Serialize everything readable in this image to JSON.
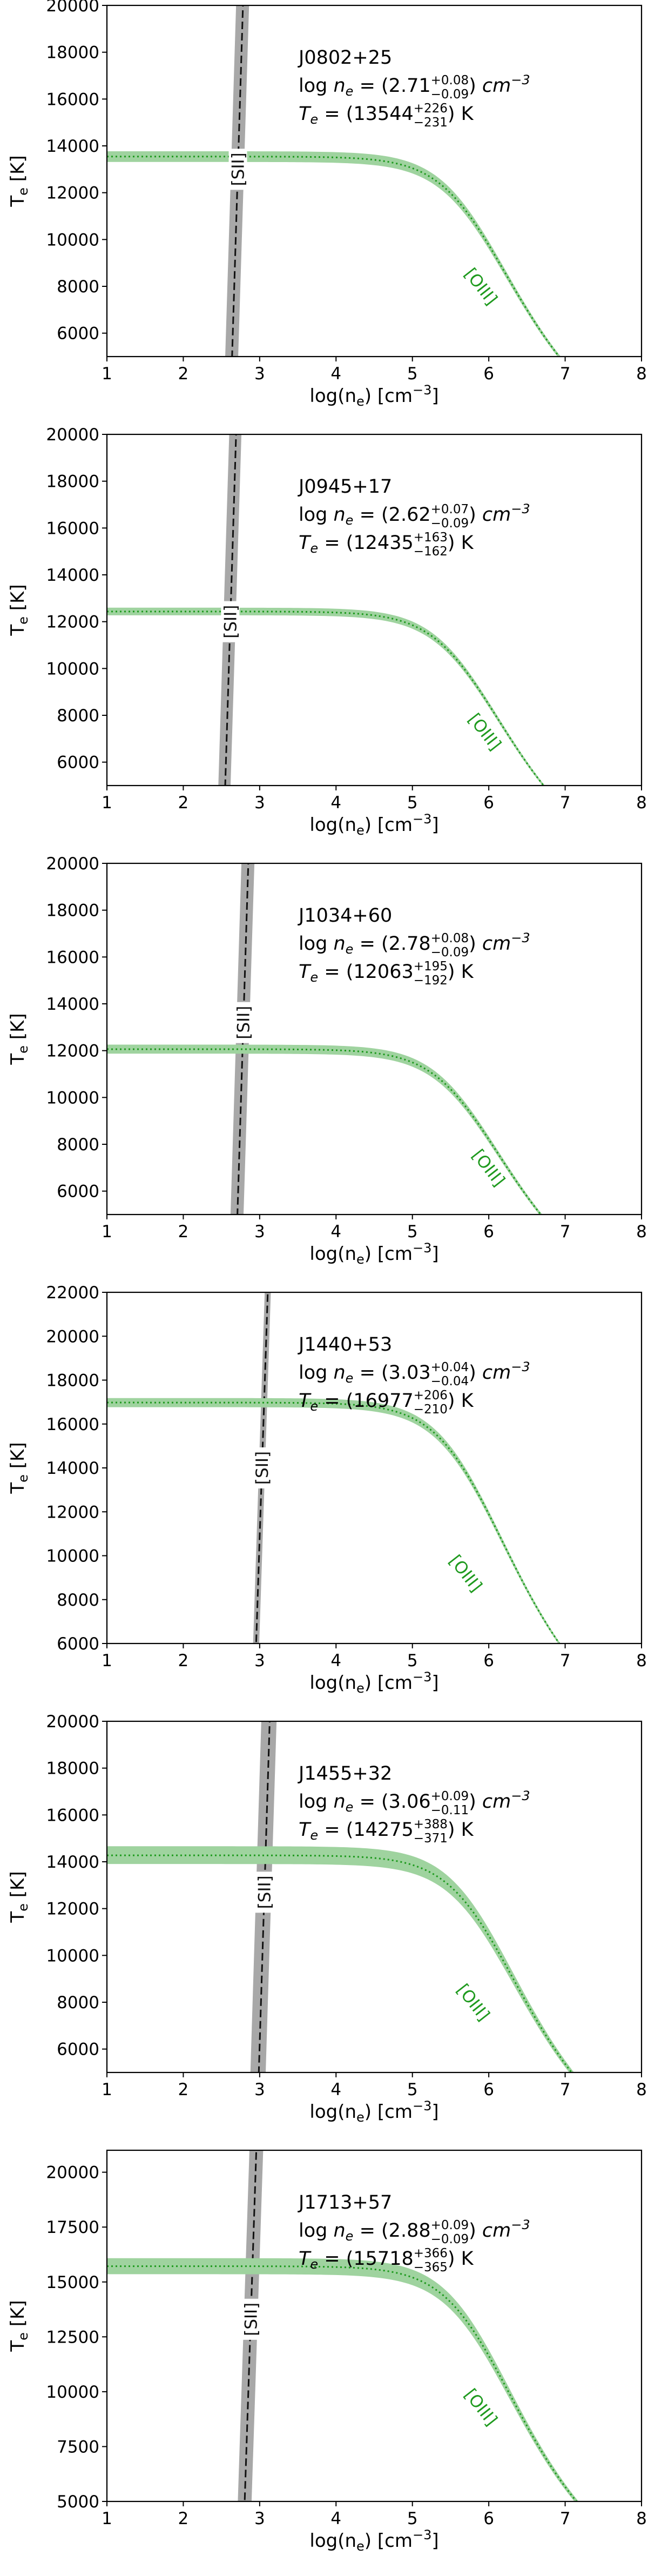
{
  "figure": {
    "shared_xlabel": "log(n_e) [cm^-3]",
    "shared_ylabel": "T_e [K]"
  },
  "colors": {
    "oiii": "#1e9a1e",
    "oiii_band": "#9fd39f",
    "sii": "#111111",
    "sii_band": "#a8a8a8",
    "axis": "#000000"
  },
  "chart_data": [
    {
      "type": "line",
      "object": "J0802+25",
      "ne_text": {
        "prefix": "log ",
        "var": "n",
        "sub": "e",
        "eq": " = (2.71",
        "sup": "+0.08",
        "inf": "−0.09",
        "suffix": ") ",
        "unit": "cm",
        "unit_exp": "−3"
      },
      "te_text": {
        "var": "T",
        "sub": "e",
        "eq": " = (13544",
        "sup": "+226",
        "inf": "−231",
        "suffix": ") K"
      },
      "xlim": [
        1,
        8
      ],
      "ylim": [
        5000,
        20000
      ],
      "xticks": [
        1,
        2,
        3,
        4,
        5,
        6,
        7,
        8
      ],
      "yticks": [
        6000,
        8000,
        10000,
        12000,
        14000,
        16000,
        18000,
        20000
      ],
      "xlabel": "log(n_e) [cm^-3]",
      "ylabel": "T_e [K]",
      "oiii": {
        "label": "[OIII]",
        "te_low_density": 13544,
        "te_err_plus": 226,
        "te_err_minus": 231,
        "knee_log_ne": 5.8
      },
      "sii": {
        "label": "[SII]",
        "log_ne": 2.71,
        "err_plus": 0.08,
        "err_minus": 0.09,
        "slope_dex_per_K": 9.5e-06,
        "visible_line_ylim": [
          5000,
          20000
        ]
      },
      "labels_pos": {
        "sii_y": 13000,
        "oiii_x": 5.9,
        "oiii_y": 8000
      }
    },
    {
      "type": "line",
      "object": "J0945+17",
      "ne_text": {
        "prefix": "log ",
        "var": "n",
        "sub": "e",
        "eq": " = (2.62",
        "sup": "+0.07",
        "inf": "−0.09",
        "suffix": ") ",
        "unit": "cm",
        "unit_exp": "−3"
      },
      "te_text": {
        "var": "T",
        "sub": "e",
        "eq": " = (12435",
        "sup": "+163",
        "inf": "−162",
        "suffix": ") K"
      },
      "xlim": [
        1,
        8
      ],
      "ylim": [
        5000,
        20000
      ],
      "xticks": [
        1,
        2,
        3,
        4,
        5,
        6,
        7,
        8
      ],
      "yticks": [
        6000,
        8000,
        10000,
        12000,
        14000,
        16000,
        18000,
        20000
      ],
      "xlabel": "log(n_e) [cm^-3]",
      "ylabel": "T_e [K]",
      "oiii": {
        "label": "[OIII]",
        "te_low_density": 12435,
        "te_err_plus": 163,
        "te_err_minus": 162,
        "knee_log_ne": 5.7
      },
      "sii": {
        "label": "[SII]",
        "log_ne": 2.62,
        "err_plus": 0.07,
        "err_minus": 0.09,
        "slope_dex_per_K": 9.5e-06,
        "visible_line_ylim": [
          5000,
          20000
        ]
      },
      "labels_pos": {
        "sii_y": 12000,
        "oiii_x": 5.95,
        "oiii_y": 7300
      }
    },
    {
      "type": "line",
      "object": "J1034+60",
      "ne_text": {
        "prefix": "log ",
        "var": "n",
        "sub": "e",
        "eq": " = (2.78",
        "sup": "+0.08",
        "inf": "−0.09",
        "suffix": ") ",
        "unit": "cm",
        "unit_exp": "−3"
      },
      "te_text": {
        "var": "T",
        "sub": "e",
        "eq": " = (12063",
        "sup": "+195",
        "inf": "−192",
        "suffix": ") K"
      },
      "xlim": [
        1,
        8
      ],
      "ylim": [
        5000,
        20000
      ],
      "xticks": [
        1,
        2,
        3,
        4,
        5,
        6,
        7,
        8
      ],
      "yticks": [
        6000,
        8000,
        10000,
        12000,
        14000,
        16000,
        18000,
        20000
      ],
      "xlabel": "log(n_e) [cm^-3]",
      "ylabel": "T_e [K]",
      "oiii": {
        "label": "[OIII]",
        "te_low_density": 12063,
        "te_err_plus": 195,
        "te_err_minus": 192,
        "knee_log_ne": 5.7
      },
      "sii": {
        "label": "[SII]",
        "log_ne": 2.78,
        "err_plus": 0.08,
        "err_minus": 0.09,
        "slope_dex_per_K": 9.5e-06,
        "visible_line_ylim": [
          5000,
          20000
        ]
      },
      "labels_pos": {
        "sii_y": 13200,
        "oiii_x": 6.0,
        "oiii_y": 7000
      }
    },
    {
      "type": "line",
      "object": "J1440+53",
      "ne_text": {
        "prefix": "log ",
        "var": "n",
        "sub": "e",
        "eq": " = (3.03",
        "sup": "+0.04",
        "inf": "−0.04",
        "suffix": ") ",
        "unit": "cm",
        "unit_exp": "−3"
      },
      "te_text": {
        "var": "T",
        "sub": "e",
        "eq": " = (16977",
        "sup": "+206",
        "inf": "−210",
        "suffix": ") K"
      },
      "xlim": [
        1,
        8
      ],
      "ylim": [
        6000,
        22000
      ],
      "xticks": [
        1,
        2,
        3,
        4,
        5,
        6,
        7,
        8
      ],
      "yticks": [
        6000,
        8000,
        10000,
        12000,
        14000,
        16000,
        18000,
        20000,
        22000
      ],
      "xlabel": "log(n_e) [cm^-3]",
      "ylabel": "T_e [K]",
      "oiii": {
        "label": "[OIII]",
        "te_low_density": 16977,
        "te_err_plus": 206,
        "te_err_minus": 210,
        "knee_log_ne": 5.75
      },
      "sii": {
        "label": "[SII]",
        "log_ne": 3.03,
        "err_plus": 0.04,
        "err_minus": 0.04,
        "slope_dex_per_K": 9.5e-06,
        "visible_line_ylim": [
          6000,
          22000
        ]
      },
      "labels_pos": {
        "sii_y": 14000,
        "oiii_x": 5.7,
        "oiii_y": 9200
      }
    },
    {
      "type": "line",
      "object": "J1455+32",
      "ne_text": {
        "prefix": "log ",
        "var": "n",
        "sub": "e",
        "eq": " = (3.06",
        "sup": "+0.09",
        "inf": "−0.11",
        "suffix": ") ",
        "unit": "cm",
        "unit_exp": "−3"
      },
      "te_text": {
        "var": "T",
        "sub": "e",
        "eq": " = (14275",
        "sup": "+388",
        "inf": "−371",
        "suffix": ") K"
      },
      "xlim": [
        1,
        8
      ],
      "ylim": [
        5000,
        20000
      ],
      "xticks": [
        1,
        2,
        3,
        4,
        5,
        6,
        7,
        8
      ],
      "yticks": [
        6000,
        8000,
        10000,
        12000,
        14000,
        16000,
        18000,
        20000
      ],
      "xlabel": "log(n_e) [cm^-3]",
      "ylabel": "T_e [K]",
      "oiii": {
        "label": "[OIII]",
        "te_low_density": 14275,
        "te_err_plus": 388,
        "te_err_minus": 371,
        "knee_log_ne": 5.9
      },
      "sii": {
        "label": "[SII]",
        "log_ne": 3.06,
        "err_plus": 0.09,
        "err_minus": 0.11,
        "slope_dex_per_K": 9.5e-06,
        "visible_line_ylim": [
          5000,
          20000
        ]
      },
      "labels_pos": {
        "sii_y": 12700,
        "oiii_x": 5.8,
        "oiii_y": 8000
      }
    },
    {
      "type": "line",
      "object": "J1713+57",
      "ne_text": {
        "prefix": "log ",
        "var": "n",
        "sub": "e",
        "eq": " = (2.88",
        "sup": "+0.09",
        "inf": "−0.09",
        "suffix": ") ",
        "unit": "cm",
        "unit_exp": "−3"
      },
      "te_text": {
        "var": "T",
        "sub": "e",
        "eq": " = (15718",
        "sup": "+366",
        "inf": "−365",
        "suffix": ") K"
      },
      "xlim": [
        1,
        8
      ],
      "ylim": [
        5000,
        21000
      ],
      "xticks": [
        1,
        2,
        3,
        4,
        5,
        6,
        7,
        8
      ],
      "yticks": [
        5000,
        7500,
        10000,
        12500,
        15000,
        17500,
        20000
      ],
      "xlabel": "log(n_e) [cm^-3]",
      "ylabel": "T_e [K]",
      "oiii": {
        "label": "[OIII]",
        "te_low_density": 15718,
        "te_err_plus": 366,
        "te_err_minus": 365,
        "knee_log_ne": 5.85
      },
      "sii": {
        "label": "[SII]",
        "log_ne": 2.88,
        "err_plus": 0.09,
        "err_minus": 0.09,
        "slope_dex_per_K": 9.5e-06,
        "visible_line_ylim": [
          5000,
          21000
        ]
      },
      "labels_pos": {
        "sii_y": 13300,
        "oiii_x": 5.9,
        "oiii_y": 9300
      }
    }
  ]
}
